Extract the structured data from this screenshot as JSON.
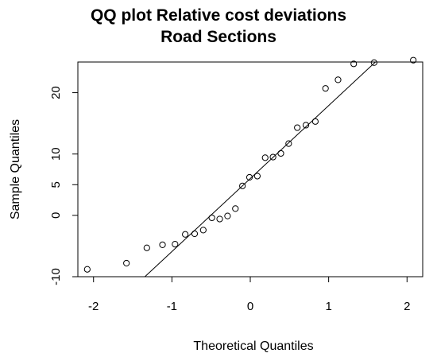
{
  "chart_data": {
    "type": "scatter",
    "title": "QQ plot Relative cost deviations",
    "subtitle": "Road Sections",
    "xlabel": "Theoretical Quantiles",
    "ylabel": "Sample Quantiles",
    "xlim": [
      -2.2,
      2.2
    ],
    "ylim": [
      -10,
      25
    ],
    "xticks": [
      -2,
      -1,
      0,
      1,
      2
    ],
    "yticks": [
      -10,
      0,
      5,
      10,
      20
    ],
    "xtick_labels": [
      "-2",
      "-1",
      "0",
      "1",
      "2"
    ],
    "ytick_labels": [
      "-10",
      "0",
      "5",
      "10",
      "20"
    ],
    "grid": false,
    "legend": "none",
    "marker": "open-circle",
    "x": [
      -2.08,
      -1.58,
      -1.32,
      -1.12,
      -0.96,
      -0.83,
      -0.71,
      -0.6,
      -0.49,
      -0.39,
      -0.29,
      -0.19,
      -0.1,
      -0.01,
      0.09,
      0.19,
      0.29,
      0.39,
      0.49,
      0.6,
      0.71,
      0.83,
      0.96,
      1.12,
      1.32,
      1.58,
      2.08
    ],
    "y": [
      -8.8,
      -7.8,
      -5.3,
      -4.8,
      -4.7,
      -3.1,
      -3.0,
      -2.4,
      -0.4,
      -0.6,
      -0.1,
      1.1,
      4.8,
      6.2,
      6.4,
      9.4,
      9.5,
      10.1,
      11.7,
      14.3,
      14.7,
      15.3,
      20.7,
      22.1,
      24.7,
      24.9,
      25.3
    ],
    "reference_line": {
      "intercept": 6.0,
      "slope": 11.9
    }
  }
}
